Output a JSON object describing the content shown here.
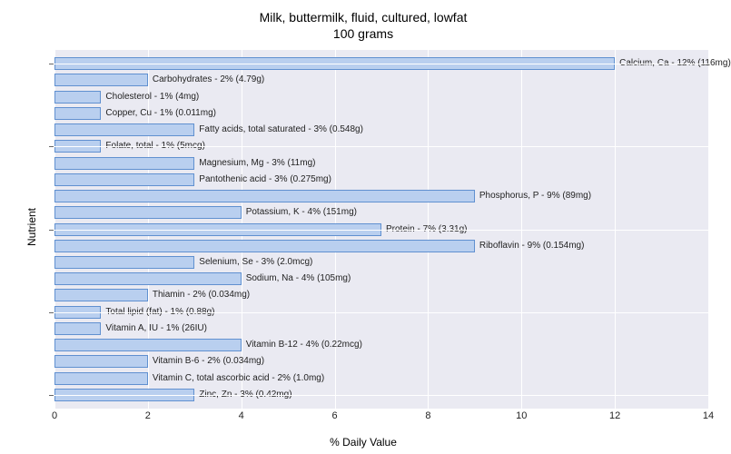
{
  "title_line1": "Milk, buttermilk, fluid, cultured, lowfat",
  "title_line2": "100 grams",
  "x_axis_label": "% Daily Value",
  "y_axis_label": "Nutrient",
  "chart": {
    "type": "bar",
    "orientation": "horizontal",
    "xlim": [
      0,
      14
    ],
    "xtick_step": 2,
    "xticks": [
      "0",
      "2",
      "4",
      "6",
      "8",
      "10",
      "12",
      "14"
    ],
    "plot_bg": "#eaeaf2",
    "grid_color": "#ffffff",
    "bar_fill": "#b9cfef",
    "bar_border": "#6090d0",
    "label_fontsize": 10,
    "tick_fontsize": 11,
    "title_fontsize": 14,
    "y_major_ticks": [
      1,
      6,
      11,
      16,
      21
    ],
    "bars": [
      {
        "value": 12,
        "label": "Calcium, Ca - 12% (116mg)"
      },
      {
        "value": 2,
        "label": "Carbohydrates - 2% (4.79g)"
      },
      {
        "value": 1,
        "label": "Cholesterol - 1% (4mg)"
      },
      {
        "value": 1,
        "label": "Copper, Cu - 1% (0.011mg)"
      },
      {
        "value": 3,
        "label": "Fatty acids, total saturated - 3% (0.548g)"
      },
      {
        "value": 1,
        "label": "Folate, total - 1% (5mcg)"
      },
      {
        "value": 3,
        "label": "Magnesium, Mg - 3% (11mg)"
      },
      {
        "value": 3,
        "label": "Pantothenic acid - 3% (0.275mg)"
      },
      {
        "value": 9,
        "label": "Phosphorus, P - 9% (89mg)"
      },
      {
        "value": 4,
        "label": "Potassium, K - 4% (151mg)"
      },
      {
        "value": 7,
        "label": "Protein - 7% (3.31g)"
      },
      {
        "value": 9,
        "label": "Riboflavin - 9% (0.154mg)"
      },
      {
        "value": 3,
        "label": "Selenium, Se - 3% (2.0mcg)"
      },
      {
        "value": 4,
        "label": "Sodium, Na - 4% (105mg)"
      },
      {
        "value": 2,
        "label": "Thiamin - 2% (0.034mg)"
      },
      {
        "value": 1,
        "label": "Total lipid (fat) - 1% (0.88g)"
      },
      {
        "value": 1,
        "label": "Vitamin A, IU - 1% (26IU)"
      },
      {
        "value": 4,
        "label": "Vitamin B-12 - 4% (0.22mcg)"
      },
      {
        "value": 2,
        "label": "Vitamin B-6 - 2% (0.034mg)"
      },
      {
        "value": 2,
        "label": "Vitamin C, total ascorbic acid - 2% (1.0mg)"
      },
      {
        "value": 3,
        "label": "Zinc, Zn - 3% (0.42mg)"
      }
    ]
  }
}
